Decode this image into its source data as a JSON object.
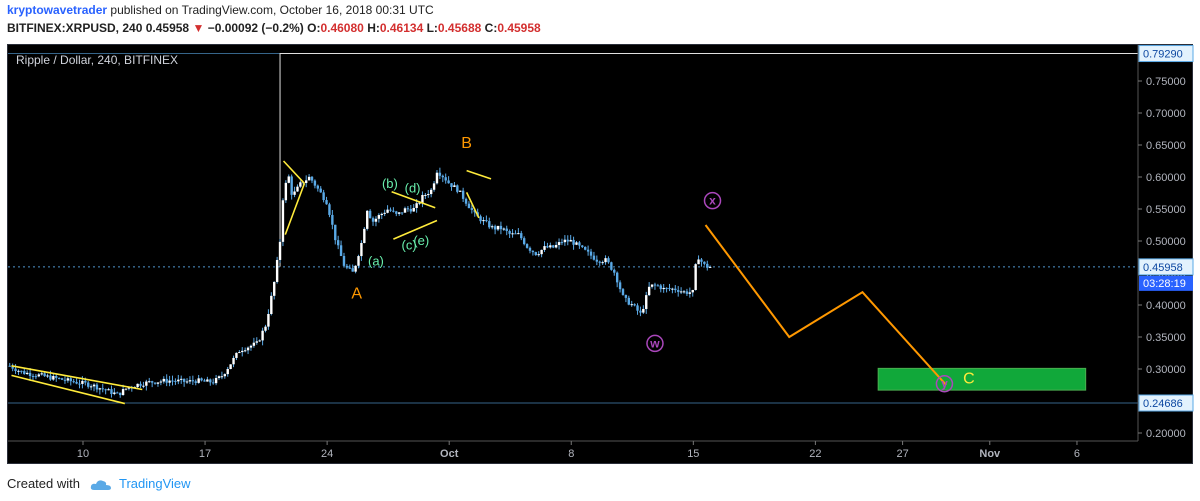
{
  "header": {
    "author": "kryptowavetrader",
    "published_text": "published on TradingView.com, October 16, 2018 00:31 UTC",
    "symbol": "BITFINEX:XRPUSD, 240",
    "last": "0.45958",
    "change": "−0.00092 (−0.2%)",
    "o_label": "O:",
    "o_value": "0.46080",
    "h_label": "H:",
    "h_value": "0.46134",
    "l_label": "L:",
    "l_value": "0.45688",
    "c_label": "C:",
    "c_value": "0.45958",
    "arrow_icon": "triangle-down-icon"
  },
  "footer": {
    "created_with": "Created with",
    "brand": "TradingView",
    "logo_icon": "cloud-icon"
  },
  "colors": {
    "background": "#000000",
    "candle": "#5aa9e6",
    "axis_text": "#b2b5be",
    "price_line": "#5aa9e6",
    "wave_line": "#ff9800",
    "yellow": "#ffeb3b",
    "green_label": "#69f0ae",
    "purple": "#ab47bc",
    "target_zone": "#11a83a"
  },
  "chart_data": {
    "type": "candlestick",
    "title": "Ripple / Dollar, 240, BITFINEX",
    "ylim": [
      0.2,
      0.8
    ],
    "y_ticks": [
      0.2,
      0.25,
      0.3,
      0.35,
      0.4,
      0.45,
      0.5,
      0.55,
      0.6,
      0.65,
      0.7,
      0.75
    ],
    "y_tick_labels": [
      "0.20000",
      "0.25000",
      "0.30000",
      "0.35000",
      "0.40000",
      "0.45000",
      "0.50000",
      "0.55000",
      "0.60000",
      "0.65000",
      "0.70000",
      "0.75000"
    ],
    "x_tick_labels": [
      "10",
      "17",
      "24",
      "Oct",
      "8",
      "15",
      "22",
      "27",
      "Nov",
      "6"
    ],
    "x_tick_days": [
      10,
      17,
      24,
      31,
      38,
      45,
      52,
      57,
      62,
      67
    ],
    "x_axis_note": "day numbers counted from Sep 0 (Sep 1 = 1)",
    "xlim_days": [
      5.7,
      70.5
    ],
    "price_labels": [
      {
        "value": 0.7929,
        "text": "0.79290"
      },
      {
        "value": 0.45958,
        "text": "0.45958"
      },
      {
        "value": 0.24686,
        "text": "0.24686"
      }
    ],
    "countdown": "03:28:19",
    "price_series_days": [
      5.8,
      6.5,
      7.5,
      8.5,
      9.5,
      10.5,
      11.0,
      11.5,
      12.0,
      12.5,
      13.0,
      13.5,
      14.0,
      15.0,
      16.0,
      16.5,
      17.0,
      17.5,
      18.0,
      18.5,
      19.0,
      19.5,
      20.0,
      20.5,
      21.0,
      21.3,
      21.5,
      21.8,
      22.0,
      22.5,
      23.0,
      23.5,
      24.0,
      24.5,
      25.0,
      25.5,
      26.0,
      26.3,
      26.6,
      27.0,
      27.5,
      28.0,
      28.5,
      29.0,
      29.5,
      30.0,
      30.3,
      30.7,
      31.0,
      31.5,
      32.0,
      32.5,
      33.0,
      33.5,
      34.0,
      34.5,
      35.0,
      35.5,
      36.0,
      36.5,
      37.0,
      37.5,
      38.0,
      38.5,
      39.0,
      39.5,
      40.0,
      40.5,
      41.0,
      41.5,
      42.0,
      42.5,
      43.0,
      43.3,
      43.6,
      44.0,
      44.5,
      45.0,
      45.2,
      45.4,
      45.7,
      46.0
    ],
    "price_series_close": [
      0.305,
      0.295,
      0.29,
      0.285,
      0.28,
      0.275,
      0.27,
      0.265,
      0.26,
      0.27,
      0.275,
      0.278,
      0.28,
      0.282,
      0.28,
      0.282,
      0.28,
      0.28,
      0.29,
      0.31,
      0.33,
      0.335,
      0.34,
      0.37,
      0.44,
      0.5,
      0.58,
      0.6,
      0.57,
      0.59,
      0.6,
      0.58,
      0.56,
      0.5,
      0.46,
      0.45,
      0.5,
      0.55,
      0.53,
      0.54,
      0.55,
      0.54,
      0.55,
      0.55,
      0.57,
      0.58,
      0.61,
      0.6,
      0.59,
      0.58,
      0.56,
      0.54,
      0.53,
      0.52,
      0.52,
      0.51,
      0.51,
      0.49,
      0.48,
      0.49,
      0.49,
      0.5,
      0.5,
      0.49,
      0.48,
      0.47,
      0.47,
      0.45,
      0.41,
      0.4,
      0.385,
      0.43,
      0.43,
      0.425,
      0.425,
      0.425,
      0.42,
      0.42,
      0.48,
      0.47,
      0.46,
      0.4596
    ],
    "patterns": {
      "down_channel": [
        {
          "d1": 5.9,
          "p1": 0.305,
          "d2": 13.4,
          "p2": 0.268
        },
        {
          "d1": 5.9,
          "p1": 0.29,
          "d2": 12.4,
          "p2": 0.246
        }
      ],
      "triangle_top": [
        {
          "d1": 21.5,
          "p1": 0.625,
          "d2": 22.7,
          "p2": 0.59
        },
        {
          "d1": 22.7,
          "p1": 0.59,
          "d2": 21.6,
          "p2": 0.51
        }
      ],
      "wedge_b": [
        {
          "d1": 27.7,
          "p1": 0.577,
          "d2": 30.2,
          "p2": 0.552
        },
        {
          "d1": 27.8,
          "p1": 0.503,
          "d2": 30.3,
          "p2": 0.532
        }
      ],
      "flag_b": [
        {
          "d1": 32.0,
          "p1": 0.61,
          "d2": 33.4,
          "p2": 0.597
        },
        {
          "d1": 32.0,
          "p1": 0.576,
          "d2": 32.7,
          "p2": 0.536
        }
      ],
      "projection": [
        {
          "d": 45.7,
          "p": 0.525
        },
        {
          "d": 50.5,
          "p": 0.35
        },
        {
          "d": 54.7,
          "p": 0.42
        },
        {
          "d": 59.5,
          "p": 0.275
        }
      ],
      "target_zone": {
        "d1": 55.6,
        "d2": 67.5,
        "p1": 0.301,
        "p2": 0.267
      },
      "wave_box": {
        "d1": 21.3,
        "p1": 0.7929
      }
    },
    "annotations": [
      {
        "text": "A",
        "d": 25.7,
        "p": 0.41,
        "color": "#ff9800",
        "size": 16
      },
      {
        "text": "B",
        "d": 32.0,
        "p": 0.645,
        "color": "#ff9800",
        "size": 16
      },
      {
        "text": "C",
        "d": 60.8,
        "p": 0.277,
        "color": "#ffeb3b",
        "size": 16
      },
      {
        "text": "(a)",
        "d": 26.8,
        "p": 0.462,
        "color": "#69f0ae",
        "size": 13
      },
      {
        "text": "(b)",
        "d": 27.6,
        "p": 0.583,
        "color": "#69f0ae",
        "size": 13
      },
      {
        "text": "(c)",
        "d": 28.7,
        "p": 0.487,
        "color": "#69f0ae",
        "size": 13
      },
      {
        "text": "(d)",
        "d": 28.9,
        "p": 0.576,
        "color": "#69f0ae",
        "size": 13
      },
      {
        "text": "(e)",
        "d": 29.4,
        "p": 0.494,
        "color": "#69f0ae",
        "size": 13
      }
    ],
    "circled_labels": [
      {
        "text": "w",
        "d": 42.8,
        "p": 0.34
      },
      {
        "text": "x",
        "d": 46.1,
        "p": 0.563
      },
      {
        "text": "y",
        "d": 59.4,
        "p": 0.277
      }
    ]
  }
}
